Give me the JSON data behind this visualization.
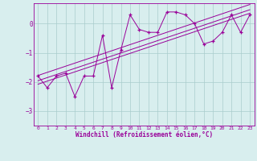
{
  "xlabel": "Windchill (Refroidissement éolien,°C)",
  "bg_color": "#d8eeee",
  "grid_color": "#aacccc",
  "line_color": "#990099",
  "x_data": [
    0,
    1,
    2,
    3,
    4,
    5,
    6,
    7,
    8,
    9,
    10,
    11,
    12,
    13,
    14,
    15,
    16,
    17,
    18,
    19,
    20,
    21,
    22,
    23
  ],
  "y_data": [
    -1.8,
    -2.2,
    -1.8,
    -1.7,
    -2.5,
    -1.8,
    -1.8,
    -0.4,
    -2.2,
    -0.9,
    0.3,
    -0.2,
    -0.3,
    -0.3,
    0.4,
    0.4,
    0.3,
    0.0,
    -0.7,
    -0.6,
    -0.3,
    0.3,
    -0.3,
    0.3
  ],
  "ylim": [
    -3.5,
    0.7
  ],
  "xlim": [
    -0.5,
    23.5
  ],
  "yticks": [
    0,
    -1,
    -2,
    -3
  ],
  "xticks": [
    0,
    1,
    2,
    3,
    4,
    5,
    6,
    7,
    8,
    9,
    10,
    11,
    12,
    13,
    14,
    15,
    16,
    17,
    18,
    19,
    20,
    21,
    22,
    23
  ],
  "trend_offsets": [
    0.0,
    0.18,
    -0.12
  ],
  "figsize": [
    3.2,
    2.0
  ],
  "dpi": 100
}
